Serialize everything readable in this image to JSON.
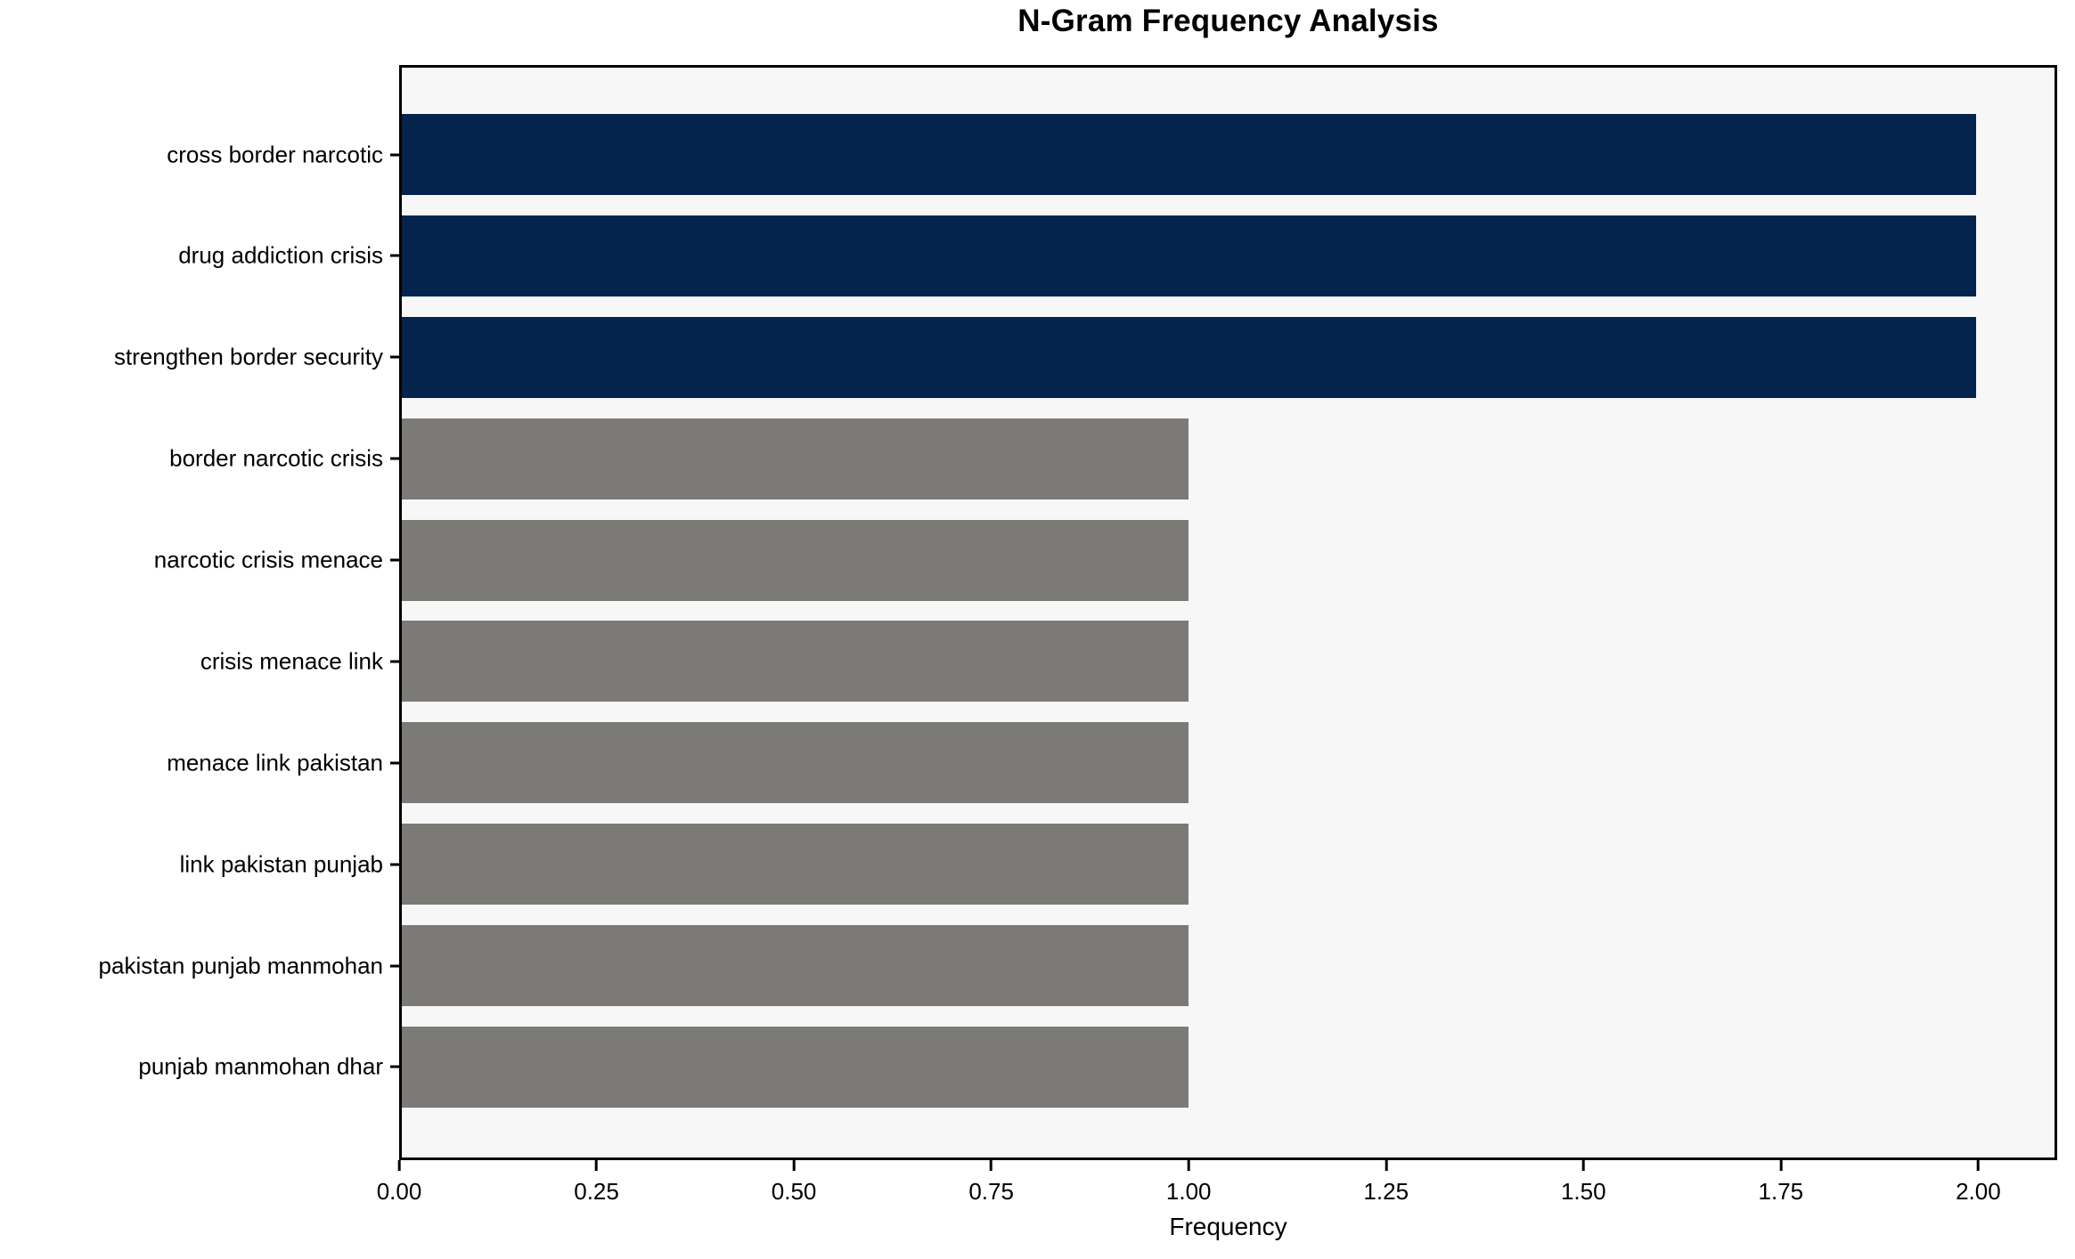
{
  "chart_data": {
    "type": "bar",
    "orientation": "horizontal",
    "title": "N-Gram Frequency Analysis",
    "xlabel": "Frequency",
    "ylabel": "",
    "categories": [
      "cross border narcotic",
      "drug addiction crisis",
      "strengthen border security",
      "border narcotic crisis",
      "narcotic crisis menace",
      "crisis menace link",
      "menace link pakistan",
      "link pakistan punjab",
      "pakistan punjab manmohan",
      "punjab manmohan dhar"
    ],
    "values": [
      2,
      2,
      2,
      1,
      1,
      1,
      1,
      1,
      1,
      1
    ],
    "bar_colors": [
      "#04244E",
      "#04244E",
      "#04244E",
      "#7B7A77",
      "#7B7A77",
      "#7B7A77",
      "#7B7A77",
      "#7B7A77",
      "#7B7A77",
      "#7B7A77"
    ],
    "xlim": [
      0,
      2.1
    ],
    "xticks": [
      {
        "value": 0.0,
        "label": "0.00"
      },
      {
        "value": 0.25,
        "label": "0.25"
      },
      {
        "value": 0.5,
        "label": "0.50"
      },
      {
        "value": 0.75,
        "label": "0.75"
      },
      {
        "value": 1.0,
        "label": "1.00"
      },
      {
        "value": 1.25,
        "label": "1.25"
      },
      {
        "value": 1.5,
        "label": "1.50"
      },
      {
        "value": 1.75,
        "label": "1.75"
      },
      {
        "value": 2.0,
        "label": "2.00"
      }
    ],
    "grid": false,
    "legend": false,
    "colors": {
      "highlight_navy": "#04244E",
      "default_gray": "#7B7A77",
      "plot_background": "#F7F7F7",
      "figure_background": "#FFFFFF",
      "axis": "#000000"
    }
  }
}
